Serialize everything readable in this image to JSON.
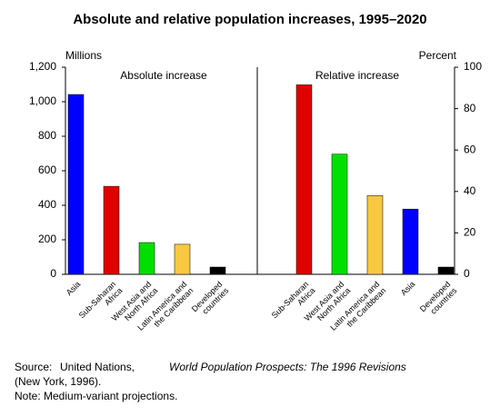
{
  "title": "Absolute and relative population increases, 1995–2020",
  "chart_data": [
    {
      "type": "bar",
      "title": "Absolute increase",
      "axis_label": "Millions",
      "categories": [
        "Asia",
        "Sub-Saharan\nAfrica",
        "West Asia and\nNorth Africa",
        "Latin America and\nthe Caribbean",
        "Developed\ncountries"
      ],
      "values": [
        1042,
        510,
        184,
        174,
        42
      ],
      "colors": [
        "#0000ff",
        "#e00000",
        "#00e000",
        "#f8c840",
        "#000000"
      ],
      "ylim": [
        0,
        1200
      ],
      "yticks": [
        0,
        200,
        400,
        600,
        800,
        {
          "value": 1000,
          "label": "1,000"
        },
        {
          "value": 1200,
          "label": "1,200"
        }
      ]
    },
    {
      "type": "bar",
      "title": "Relative increase",
      "axis_label": "Percent",
      "categories": [
        "Sub-Saharan\nAfrica",
        "West Asia and\nNorth Africa",
        "Latin America and\nthe Caribbean",
        "Asia",
        "Developed\ncountries"
      ],
      "values": [
        91.5,
        58,
        38,
        31.5,
        3.5
      ],
      "colors": [
        "#e00000",
        "#00e000",
        "#f8c840",
        "#0000ff",
        "#000000"
      ],
      "ylim": [
        0,
        100
      ],
      "yticks": [
        0,
        20,
        40,
        60,
        80,
        100
      ]
    }
  ],
  "source": {
    "label": "Source:",
    "org": "United Nations,",
    "work": "World Population Prospects: The 1996 Revisions",
    "rest": "(New York, 1996)."
  },
  "note": "Note:  Medium-variant projections."
}
